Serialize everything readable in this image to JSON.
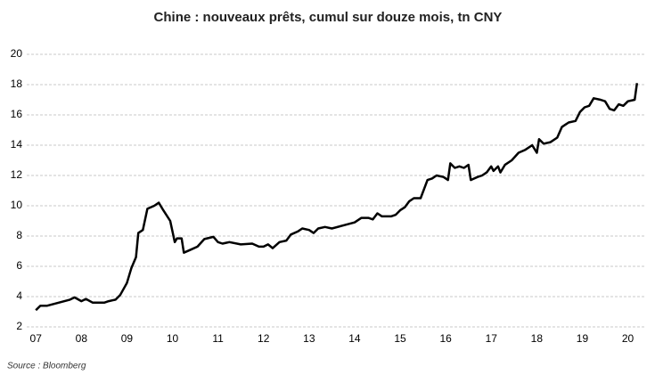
{
  "chart_data": {
    "type": "line",
    "title": "Chine : nouveaux prêts, cumul  sur douze mois,  tn CNY",
    "source": "Source : Bloomberg",
    "x": [
      2007.0,
      2007.1,
      2007.25,
      2007.5,
      2007.75,
      2007.85,
      2008.0,
      2008.1,
      2008.25,
      2008.5,
      2008.6,
      2008.75,
      2008.85,
      2009.0,
      2009.1,
      2009.2,
      2009.25,
      2009.35,
      2009.45,
      2009.6,
      2009.7,
      2009.8,
      2009.95,
      2010.05,
      2010.1,
      2010.2,
      2010.25,
      2010.4,
      2010.55,
      2010.7,
      2010.9,
      2011.0,
      2011.1,
      2011.25,
      2011.5,
      2011.75,
      2011.9,
      2012.0,
      2012.1,
      2012.2,
      2012.35,
      2012.5,
      2012.6,
      2012.75,
      2012.85,
      2013.0,
      2013.1,
      2013.2,
      2013.35,
      2013.5,
      2013.75,
      2014.0,
      2014.15,
      2014.3,
      2014.4,
      2014.5,
      2014.6,
      2014.8,
      2014.9,
      2015.0,
      2015.1,
      2015.2,
      2015.3,
      2015.45,
      2015.6,
      2015.7,
      2015.8,
      2015.95,
      2016.05,
      2016.1,
      2016.2,
      2016.3,
      2016.4,
      2016.5,
      2016.55,
      2016.7,
      2016.8,
      2016.9,
      2017.0,
      2017.05,
      2017.15,
      2017.2,
      2017.3,
      2017.45,
      2017.6,
      2017.75,
      2017.9,
      2018.0,
      2018.05,
      2018.15,
      2018.3,
      2018.45,
      2018.55,
      2018.7,
      2018.85,
      2018.95,
      2019.05,
      2019.15,
      2019.25,
      2019.4,
      2019.5,
      2019.6,
      2019.7,
      2019.8,
      2019.9,
      2020.0,
      2020.15,
      2020.2
    ],
    "series": [
      {
        "color": "#000000",
        "values": [
          3.1,
          3.4,
          3.4,
          3.6,
          3.8,
          3.95,
          3.7,
          3.85,
          3.6,
          3.6,
          3.7,
          3.8,
          4.1,
          4.9,
          5.9,
          6.6,
          8.2,
          8.4,
          9.8,
          10.0,
          10.2,
          9.7,
          9.0,
          7.6,
          7.85,
          7.85,
          6.9,
          7.1,
          7.3,
          7.8,
          7.95,
          7.6,
          7.5,
          7.6,
          7.45,
          7.5,
          7.3,
          7.3,
          7.45,
          7.2,
          7.6,
          7.7,
          8.1,
          8.3,
          8.5,
          8.4,
          8.2,
          8.5,
          8.6,
          8.5,
          8.7,
          8.9,
          9.2,
          9.2,
          9.1,
          9.5,
          9.3,
          9.3,
          9.4,
          9.7,
          9.9,
          10.3,
          10.5,
          10.5,
          11.7,
          11.8,
          12.0,
          11.9,
          11.7,
          12.8,
          12.5,
          12.6,
          12.5,
          12.7,
          11.7,
          11.9,
          12.0,
          12.2,
          12.6,
          12.3,
          12.6,
          12.2,
          12.7,
          13.0,
          13.5,
          13.7,
          14.0,
          13.5,
          14.4,
          14.1,
          14.2,
          14.5,
          15.2,
          15.5,
          15.6,
          16.2,
          16.5,
          16.6,
          17.1,
          17.0,
          16.9,
          16.4,
          16.3,
          16.7,
          16.6,
          16.9,
          17.0,
          18.1
        ]
      }
    ],
    "xlim": [
      2006.8,
      2020.4
    ],
    "xticks": [
      {
        "value": 2007,
        "label": "07"
      },
      {
        "value": 2008,
        "label": "08"
      },
      {
        "value": 2009,
        "label": "09"
      },
      {
        "value": 2010,
        "label": "10"
      },
      {
        "value": 2011,
        "label": "11"
      },
      {
        "value": 2012,
        "label": "12"
      },
      {
        "value": 2013,
        "label": "13"
      },
      {
        "value": 2014,
        "label": "14"
      },
      {
        "value": 2015,
        "label": "15"
      },
      {
        "value": 2016,
        "label": "16"
      },
      {
        "value": 2017,
        "label": "17"
      },
      {
        "value": 2018,
        "label": "18"
      },
      {
        "value": 2019,
        "label": "19"
      },
      {
        "value": 2020,
        "label": "20"
      }
    ],
    "ylim": [
      2,
      20
    ],
    "yticks": [
      2,
      4,
      6,
      8,
      10,
      12,
      14,
      16,
      18,
      20
    ],
    "grid": true
  }
}
